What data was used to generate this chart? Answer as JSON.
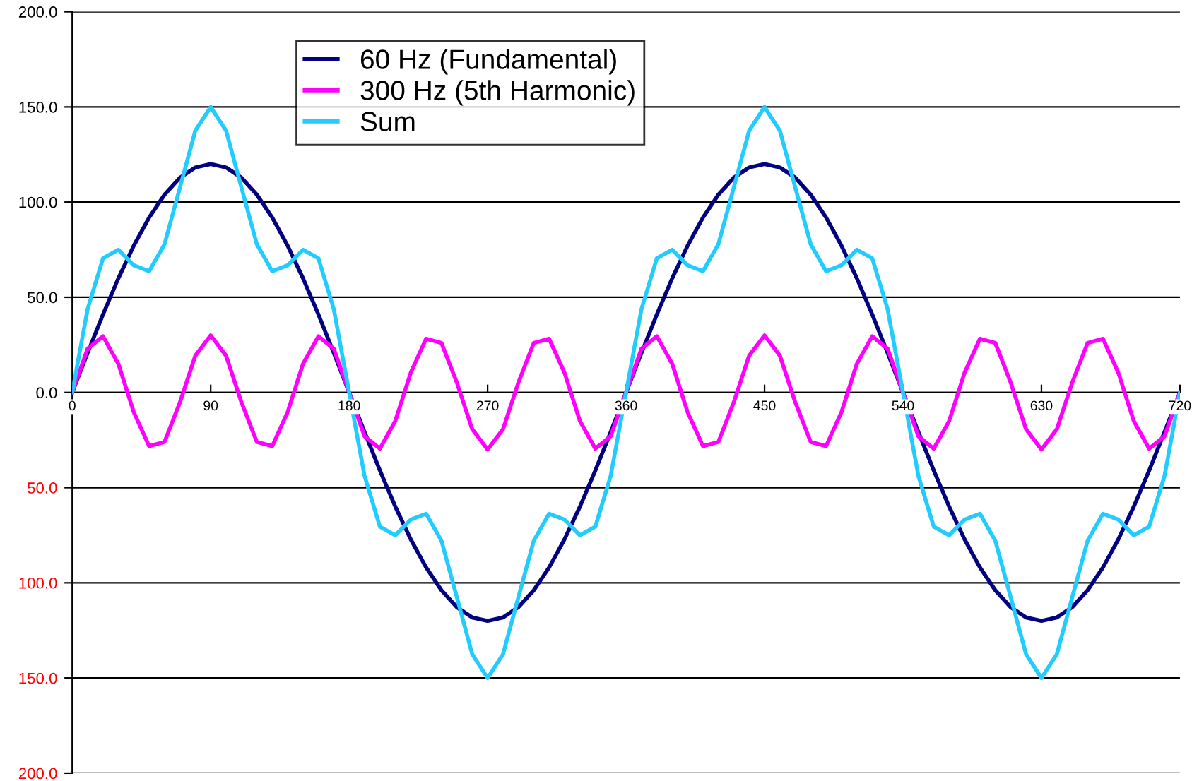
{
  "chart_data": {
    "type": "line",
    "x": [
      0,
      10,
      20,
      30,
      40,
      50,
      60,
      70,
      80,
      90,
      100,
      110,
      120,
      130,
      140,
      150,
      160,
      170,
      180,
      190,
      200,
      210,
      220,
      230,
      240,
      250,
      260,
      270,
      280,
      290,
      300,
      310,
      320,
      330,
      340,
      350,
      360,
      370,
      380,
      390,
      400,
      410,
      420,
      430,
      440,
      450,
      460,
      470,
      480,
      490,
      500,
      510,
      520,
      530,
      540,
      550,
      560,
      570,
      580,
      590,
      600,
      610,
      620,
      630,
      640,
      650,
      660,
      670,
      680,
      690,
      700,
      710,
      720
    ],
    "series": [
      {
        "name": "60 Hz (Fundamental)",
        "color": "#000080",
        "values": [
          0,
          20.8,
          41.0,
          60.0,
          77.1,
          91.9,
          103.9,
          112.8,
          118.2,
          120.0,
          118.2,
          112.8,
          103.9,
          91.9,
          77.1,
          60.0,
          41.0,
          20.8,
          0,
          -20.8,
          -41.0,
          -60.0,
          -77.1,
          -91.9,
          -103.9,
          -112.8,
          -118.2,
          -120.0,
          -118.2,
          -112.8,
          -103.9,
          -91.9,
          -77.1,
          -60.0,
          -41.0,
          -20.8,
          0,
          20.8,
          41.0,
          60.0,
          77.1,
          91.9,
          103.9,
          112.8,
          118.2,
          120.0,
          118.2,
          112.8,
          103.9,
          91.9,
          77.1,
          60.0,
          41.0,
          20.8,
          0,
          -20.8,
          -41.0,
          -60.0,
          -77.1,
          -91.9,
          -103.9,
          -112.8,
          -118.2,
          -120.0,
          -118.2,
          -112.8,
          -103.9,
          -91.9,
          -77.1,
          -60.0,
          -41.0,
          -20.8,
          0
        ]
      },
      {
        "name": "300 Hz (5th Harmonic)",
        "color": "#ff00ff",
        "values": [
          0,
          23.0,
          29.5,
          15.0,
          -10.3,
          -28.2,
          -26.0,
          -5.2,
          19.3,
          30.0,
          19.3,
          -5.2,
          -26.0,
          -28.2,
          -10.3,
          15.0,
          29.5,
          23.0,
          0,
          -23.0,
          -29.5,
          -15.0,
          10.3,
          28.2,
          26.0,
          5.2,
          -19.3,
          -30.0,
          -19.3,
          5.2,
          26.0,
          28.2,
          10.3,
          -15.0,
          -29.5,
          -23.0,
          0,
          23.0,
          29.5,
          15.0,
          -10.3,
          -28.2,
          -26.0,
          -5.2,
          19.3,
          30.0,
          19.3,
          -5.2,
          -26.0,
          -28.2,
          -10.3,
          15.0,
          29.5,
          23.0,
          0,
          -23.0,
          -29.5,
          -15.0,
          10.3,
          28.2,
          26.0,
          5.2,
          -19.3,
          -30.0,
          -19.3,
          5.2,
          26.0,
          28.2,
          10.3,
          -15.0,
          -29.5,
          -23.0,
          0
        ]
      },
      {
        "name": "Sum",
        "color": "#22ccff",
        "values": [
          0,
          43.8,
          70.5,
          75.0,
          66.8,
          63.7,
          77.9,
          107.6,
          137.5,
          150.0,
          137.5,
          107.6,
          77.9,
          63.7,
          66.8,
          75.0,
          70.5,
          43.8,
          0,
          -43.8,
          -70.5,
          -75.0,
          -66.8,
          -63.7,
          -77.9,
          -107.6,
          -137.5,
          -150.0,
          -137.5,
          -107.6,
          -77.9,
          -63.7,
          -66.8,
          -75.0,
          -70.5,
          -43.8,
          0,
          43.8,
          70.5,
          75.0,
          66.8,
          63.7,
          77.9,
          107.6,
          137.5,
          150.0,
          137.5,
          107.6,
          77.9,
          63.7,
          66.8,
          75.0,
          70.5,
          43.8,
          0,
          -43.8,
          -70.5,
          -75.0,
          -66.8,
          -63.7,
          -77.9,
          -107.6,
          -137.5,
          -150.0,
          -137.5,
          -107.6,
          -77.9,
          -63.7,
          -66.8,
          -75.0,
          -70.5,
          -43.8,
          0
        ]
      }
    ],
    "xlim": [
      0,
      720
    ],
    "xticks": [
      0,
      90,
      180,
      270,
      360,
      450,
      540,
      630,
      720
    ],
    "ylim": [
      -200,
      200
    ],
    "yticks": [
      {
        "value": -200,
        "label": "200.0"
      },
      {
        "value": -150,
        "label": "150.0"
      },
      {
        "value": -100,
        "label": "100.0"
      },
      {
        "value": -50,
        "label": "50.0"
      },
      {
        "value": 0,
        "label": "0.0"
      },
      {
        "value": 50,
        "label": "50.0"
      },
      {
        "value": 100,
        "label": "100.0"
      },
      {
        "value": 150,
        "label": "150.0"
      },
      {
        "value": 200,
        "label": "200.0"
      }
    ],
    "grid": "y",
    "legend": "top left",
    "marker": "none",
    "line_style": "solid"
  }
}
